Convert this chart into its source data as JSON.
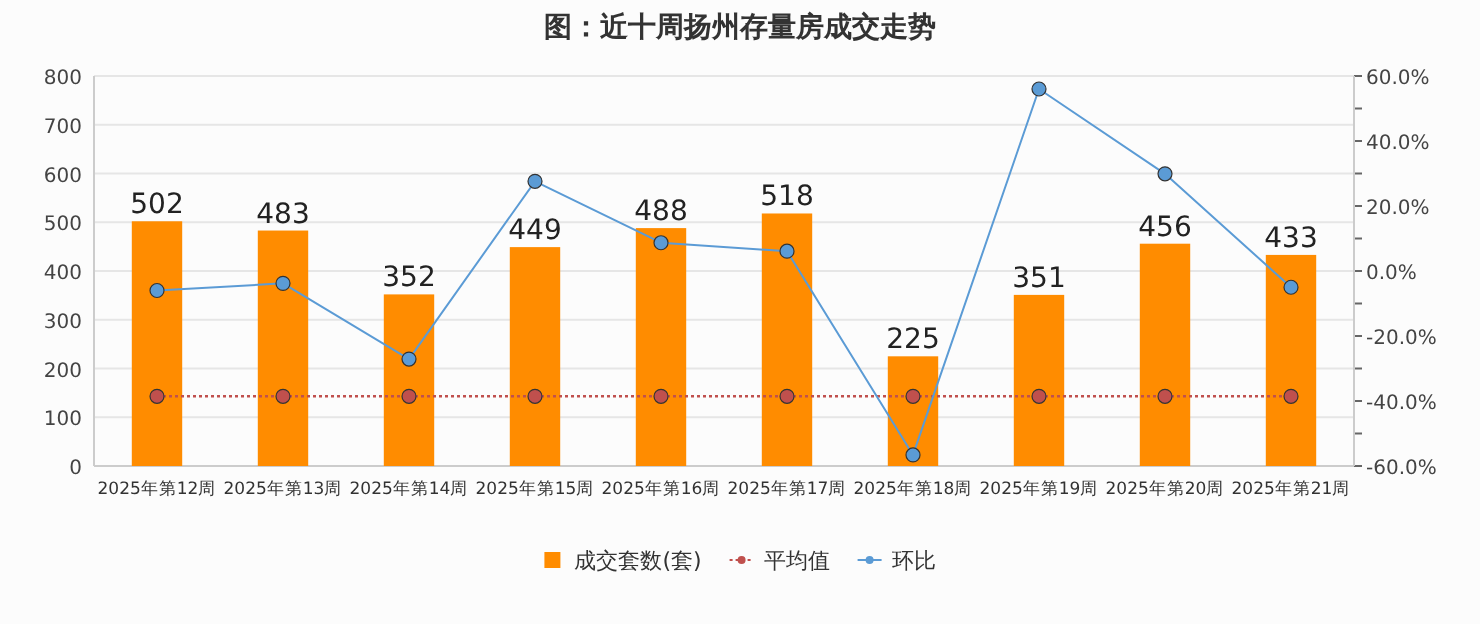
{
  "chart_data": {
    "type": "bar",
    "title": "图：近十周扬州存量房成交走势",
    "categories": [
      "2025年第12周",
      "2025年第13周",
      "2025年第14周",
      "2025年第15周",
      "2025年第16周",
      "2025年第17周",
      "2025年第18周",
      "2025年第19周",
      "2025年第20周",
      "2025年第21周"
    ],
    "series": [
      {
        "name": "成交套数(套)",
        "color": "#ff8c00",
        "values": [
          502,
          483,
          352,
          449,
          488,
          518,
          225,
          351,
          456,
          433
        ],
        "value_labels": [
          "502",
          "483",
          "352",
          "449",
          "488",
          "518",
          "225",
          "351",
          "456",
          "433"
        ]
      },
      {
        "name": "平均值",
        "type": "line",
        "color": "#c0504d",
        "line_style": "dotted",
        "marker": "circle",
        "values": [
          143,
          143,
          143,
          143,
          143,
          143,
          143,
          143,
          143,
          143
        ]
      },
      {
        "name": "环比",
        "type": "line",
        "axis": "y2",
        "color": "#5b9bd5",
        "line_style": "solid",
        "marker": "circle",
        "values": [
          -6.0,
          -3.8,
          -27.1,
          27.6,
          8.7,
          6.1,
          -56.6,
          56.0,
          29.9,
          -5.0
        ]
      }
    ],
    "ylim": [
      0,
      800
    ],
    "yticks": [
      0,
      100,
      200,
      300,
      400,
      500,
      600,
      700,
      800
    ],
    "y2lim": [
      -60,
      60
    ],
    "y2ticks": [
      {
        "value": 60,
        "label": "60.0%"
      },
      {
        "value": 50,
        "label": null
      },
      {
        "value": 40,
        "label": "40.0%"
      },
      {
        "value": 30,
        "label": null
      },
      {
        "value": 20,
        "label": "20.0%"
      },
      {
        "value": 10,
        "label": null
      },
      {
        "value": 0,
        "label": "0.0%"
      },
      {
        "value": -10,
        "label": null
      },
      {
        "value": -20,
        "label": "-20.0%"
      },
      {
        "value": -30,
        "label": null
      },
      {
        "value": -40,
        "label": "-40.0%"
      },
      {
        "value": -50,
        "label": null
      },
      {
        "value": -60,
        "label": "-60.0%"
      }
    ],
    "grid": "y",
    "legend": "bottom"
  }
}
